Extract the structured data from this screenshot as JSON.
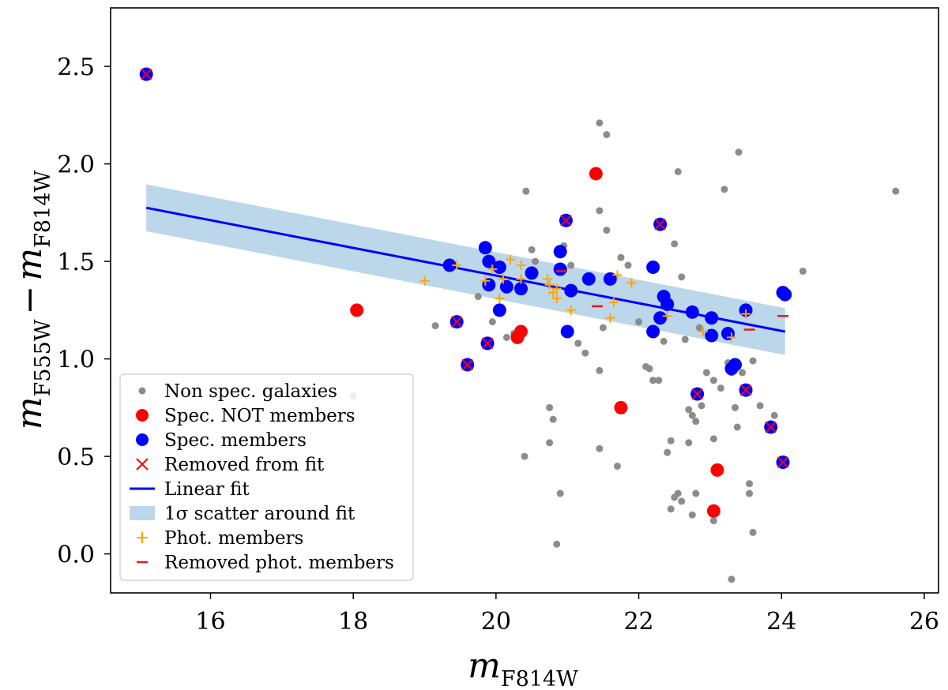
{
  "chart_data": {
    "type": "scatter",
    "xlabel": {
      "main": "m",
      "sub": "F814W"
    },
    "ylabel": {
      "main": "m",
      "sub": "F555W",
      "minus": "−",
      "main2": "m",
      "sub2": "F814W"
    },
    "xlim": [
      14.6,
      26.2
    ],
    "ylim": [
      -0.2,
      2.8
    ],
    "xticks": [
      16,
      18,
      20,
      22,
      24,
      26
    ],
    "xtick_labels": [
      "16",
      "18",
      "20",
      "22",
      "24",
      "26"
    ],
    "yticks": [
      0.0,
      0.5,
      1.0,
      1.5,
      2.0,
      2.5
    ],
    "ytick_labels": [
      "0.0",
      "0.5",
      "1.0",
      "1.5",
      "2.0",
      "2.5"
    ],
    "legend_position": "lower-left",
    "colors": {
      "non_spec": "#8c8c8c",
      "spec_not_member": "#ff0000",
      "spec_member": "#0000ff",
      "removed": "#ff0000",
      "fit": "#0000ff",
      "scatter_band": "#bcd6ea",
      "phot_member": "#ffa500",
      "removed_phot": "#e41a1c"
    },
    "legend": {
      "non_spec": "Non spec. galaxies",
      "spec_not_member": "Spec. NOT members",
      "spec_member": "Spec. members",
      "removed": "Removed from fit",
      "fit": "Linear fit",
      "scatter_band": "1σ scatter around fit",
      "phot_member": "Phot. members",
      "removed_phot": "Removed phot. members"
    },
    "linear_fit": {
      "x": [
        15.1,
        24.05
      ],
      "y": [
        1.775,
        1.14
      ],
      "sigma": 0.12
    },
    "series": [
      {
        "name": "Non spec. galaxies",
        "key": "non_spec",
        "points": [
          [
            18.0,
            0.81
          ],
          [
            19.15,
            1.17
          ],
          [
            19.75,
            1.32
          ],
          [
            19.95,
            1.19
          ],
          [
            20.15,
            1.11
          ],
          [
            20.25,
            1.13
          ],
          [
            20.42,
            1.86
          ],
          [
            20.5,
            1.56
          ],
          [
            20.55,
            1.5
          ],
          [
            20.75,
            0.75
          ],
          [
            20.8,
            0.69
          ],
          [
            20.75,
            0.57
          ],
          [
            20.4,
            0.5
          ],
          [
            20.9,
            0.31
          ],
          [
            20.85,
            0.05
          ],
          [
            20.95,
            1.58
          ],
          [
            21.05,
            1.48
          ],
          [
            21.15,
            1.08
          ],
          [
            21.25,
            1.03
          ],
          [
            21.45,
            2.21
          ],
          [
            21.55,
            2.15
          ],
          [
            21.45,
            1.76
          ],
          [
            21.55,
            1.66
          ],
          [
            21.5,
            1.16
          ],
          [
            21.45,
            0.94
          ],
          [
            21.45,
            0.54
          ],
          [
            21.7,
            0.45
          ],
          [
            21.75,
            1.52
          ],
          [
            21.85,
            1.48
          ],
          [
            22.0,
            1.19
          ],
          [
            22.1,
            0.96
          ],
          [
            22.15,
            0.95
          ],
          [
            22.2,
            0.89
          ],
          [
            22.28,
            0.89
          ],
          [
            22.3,
            1.21
          ],
          [
            22.35,
            1.09
          ],
          [
            22.4,
            0.52
          ],
          [
            22.45,
            0.58
          ],
          [
            22.45,
            0.23
          ],
          [
            22.5,
            0.29
          ],
          [
            22.55,
            0.31
          ],
          [
            22.6,
            0.27
          ],
          [
            22.55,
            1.96
          ],
          [
            22.6,
            1.42
          ],
          [
            22.5,
            1.59
          ],
          [
            22.65,
            1.1
          ],
          [
            22.7,
            0.74
          ],
          [
            22.7,
            0.57
          ],
          [
            22.75,
            0.71
          ],
          [
            22.8,
            0.68
          ],
          [
            22.75,
            0.2
          ],
          [
            22.8,
            0.31
          ],
          [
            22.88,
            0.76
          ],
          [
            22.85,
            1.16
          ],
          [
            22.95,
            0.93
          ],
          [
            23.05,
            0.89
          ],
          [
            23.05,
            0.59
          ],
          [
            23.05,
            0.17
          ],
          [
            23.15,
            0.85
          ],
          [
            23.2,
            1.87
          ],
          [
            23.25,
            0.98
          ],
          [
            23.3,
            0.93
          ],
          [
            23.3,
            -0.13
          ],
          [
            23.35,
            0.75
          ],
          [
            23.38,
            0.65
          ],
          [
            23.4,
            2.06
          ],
          [
            23.45,
            0.93
          ],
          [
            23.55,
            0.36
          ],
          [
            23.55,
            0.31
          ],
          [
            23.6,
            0.11
          ],
          [
            23.6,
            0.99
          ],
          [
            23.7,
            0.76
          ],
          [
            23.9,
            0.71
          ],
          [
            24.0,
            1.35
          ],
          [
            24.3,
            1.45
          ],
          [
            25.6,
            1.86
          ]
        ]
      },
      {
        "name": "Spec. NOT members",
        "key": "spec_not_member",
        "points": [
          [
            18.05,
            1.25
          ],
          [
            20.3,
            1.11
          ],
          [
            20.35,
            1.14
          ],
          [
            21.4,
            1.95
          ],
          [
            21.75,
            0.75
          ],
          [
            23.1,
            0.43
          ],
          [
            23.05,
            0.22
          ]
        ]
      },
      {
        "name": "Spec. members",
        "key": "spec_member",
        "points": [
          [
            15.1,
            2.46
          ],
          [
            19.35,
            1.48
          ],
          [
            19.45,
            1.19
          ],
          [
            19.6,
            0.97
          ],
          [
            19.85,
            1.57
          ],
          [
            19.9,
            1.5
          ],
          [
            19.9,
            1.38
          ],
          [
            19.88,
            1.08
          ],
          [
            20.05,
            1.47
          ],
          [
            20.05,
            1.25
          ],
          [
            20.15,
            1.37
          ],
          [
            20.35,
            1.36
          ],
          [
            20.5,
            1.44
          ],
          [
            20.9,
            1.55
          ],
          [
            20.9,
            1.46
          ],
          [
            20.98,
            1.71
          ],
          [
            21.0,
            1.14
          ],
          [
            21.05,
            1.35
          ],
          [
            21.3,
            1.41
          ],
          [
            21.6,
            1.41
          ],
          [
            22.2,
            1.47
          ],
          [
            22.2,
            1.14
          ],
          [
            22.3,
            1.69
          ],
          [
            22.3,
            1.21
          ],
          [
            22.35,
            1.32
          ],
          [
            22.4,
            1.28
          ],
          [
            22.75,
            1.24
          ],
          [
            22.82,
            0.82
          ],
          [
            23.02,
            1.21
          ],
          [
            23.02,
            1.12
          ],
          [
            23.25,
            1.13
          ],
          [
            23.3,
            0.95
          ],
          [
            23.35,
            0.97
          ],
          [
            23.5,
            1.25
          ],
          [
            23.5,
            0.84
          ],
          [
            23.85,
            0.65
          ],
          [
            24.02,
            0.47
          ],
          [
            24.02,
            1.34
          ],
          [
            24.05,
            1.33
          ]
        ]
      },
      {
        "name": "Removed from fit",
        "key": "removed",
        "points": [
          [
            15.1,
            2.46
          ],
          [
            19.45,
            1.19
          ],
          [
            19.6,
            0.97
          ],
          [
            19.88,
            1.08
          ],
          [
            20.98,
            1.71
          ],
          [
            22.3,
            1.69
          ],
          [
            22.82,
            0.82
          ],
          [
            23.5,
            0.84
          ],
          [
            23.85,
            0.65
          ],
          [
            24.02,
            0.47
          ]
        ]
      },
      {
        "name": "Phot. members",
        "key": "phot_member",
        "points": [
          [
            19.0,
            1.4
          ],
          [
            19.45,
            1.48
          ],
          [
            19.85,
            1.4
          ],
          [
            19.95,
            1.46
          ],
          [
            20.05,
            1.31
          ],
          [
            20.1,
            1.41
          ],
          [
            20.2,
            1.51
          ],
          [
            20.35,
            1.48
          ],
          [
            20.35,
            1.41
          ],
          [
            20.72,
            1.41
          ],
          [
            20.75,
            1.38
          ],
          [
            20.8,
            1.34
          ],
          [
            20.85,
            1.36
          ],
          [
            20.85,
            1.31
          ],
          [
            21.05,
            1.25
          ],
          [
            21.6,
            1.21
          ],
          [
            21.65,
            1.29
          ],
          [
            21.7,
            1.43
          ],
          [
            21.9,
            1.39
          ],
          [
            22.4,
            1.22
          ],
          [
            22.9,
            1.14
          ],
          [
            23.3,
            1.11
          ],
          [
            23.5,
            1.23
          ]
        ]
      },
      {
        "name": "Removed phot. members",
        "key": "removed_phot",
        "points": [
          [
            20.92,
            1.45
          ],
          [
            21.42,
            1.27
          ],
          [
            23.55,
            1.15
          ],
          [
            24.02,
            1.22
          ]
        ]
      }
    ]
  }
}
